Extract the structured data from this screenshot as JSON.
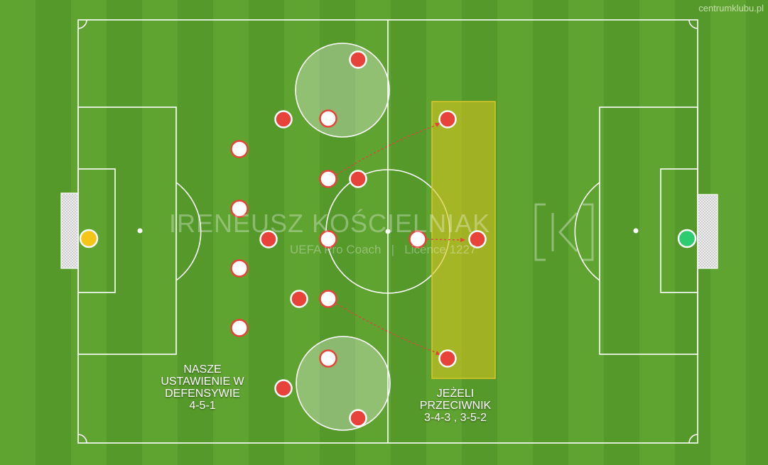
{
  "site": "centrumklubu.pl",
  "watermark": {
    "name": "IRENEUSZ KOŚCIELNIAK",
    "subtitle": "UEFA Pro Coach   |   Licence 1227",
    "logo": "IK"
  },
  "captions": {
    "our_setup": "NASZE\nUSTAWIENIE W\nDEFENSYWIE\n4-5-1",
    "opponent": "JEŻELI\nPRZECIWNIK\n3-4-3 , 3-5-2"
  },
  "colors": {
    "pitch_light": "#5fa330",
    "pitch_dark": "#4f9325",
    "line": "#ffffff",
    "red_player": "#e8433b",
    "white_player": "#ffffff",
    "left_goalkeeper": "#f5c518",
    "right_goalkeeper": "#2ecc71",
    "highlight_zone": "#c8c020"
  },
  "players": {
    "white": [
      {
        "name": "white-left-back-top"
      },
      {
        "name": "white-left-back-upper"
      },
      {
        "name": "white-left-back-lower"
      },
      {
        "name": "white-left-back-bottom"
      },
      {
        "name": "white-mid-top"
      },
      {
        "name": "white-mid-upper"
      },
      {
        "name": "white-mid-center"
      },
      {
        "name": "white-mid-lower"
      },
      {
        "name": "white-mid-bottom"
      },
      {
        "name": "white-forward"
      }
    ],
    "red": [
      {
        "name": "red-wide-top"
      },
      {
        "name": "red-mid-top"
      },
      {
        "name": "red-mid-upper"
      },
      {
        "name": "red-deep-center"
      },
      {
        "name": "red-mid-lower"
      },
      {
        "name": "red-wide-bottom"
      },
      {
        "name": "red-bottom-inner"
      },
      {
        "name": "red-right-top"
      },
      {
        "name": "red-right-center"
      },
      {
        "name": "red-right-bottom"
      }
    ]
  }
}
